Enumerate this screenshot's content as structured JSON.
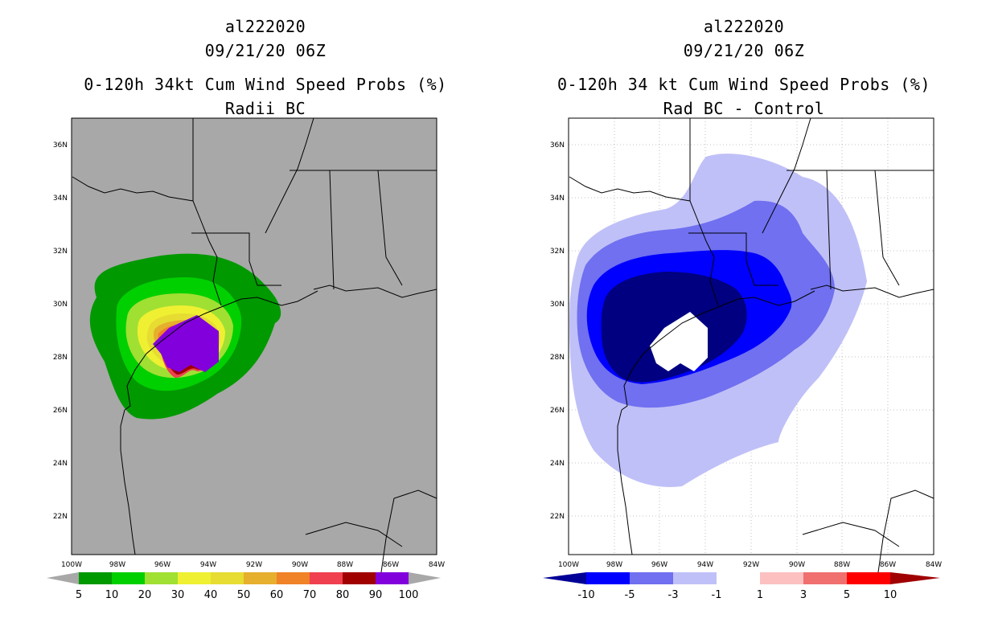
{
  "colors": {
    "land_gray": "#a8a8a8",
    "ocean_white": "#ffffff",
    "prob_scale": [
      "#009900",
      "#00d000",
      "#a0e032",
      "#eff032",
      "#e6dc32",
      "#e6af2d",
      "#f08228",
      "#f04050",
      "#a00000",
      "#8200dc"
    ],
    "diff_scale": [
      "#000096",
      "#0000ff",
      "#7070f0",
      "#c0c0f8",
      "#ffffff",
      "#fcc0c0",
      "#f07070",
      "#ff0000",
      "#a00000"
    ]
  },
  "left": {
    "storm_id": "al222020",
    "date": "09/21/20 06Z",
    "product": "0-120h 34kt Cum Wind Speed Probs (%)",
    "subtitle": "Radii BC",
    "lat_labels": [
      "36N",
      "34N",
      "32N",
      "30N",
      "28N",
      "26N",
      "24N",
      "22N"
    ],
    "lon_labels": [
      "100W",
      "98W",
      "96W",
      "94W",
      "92W",
      "90W",
      "88W",
      "86W",
      "84W"
    ],
    "colorbar_labels": [
      "5",
      "10",
      "20",
      "30",
      "40",
      "50",
      "60",
      "70",
      "80",
      "90",
      "100"
    ]
  },
  "right": {
    "storm_id": "al222020",
    "date": "09/21/20 06Z",
    "product": "0-120h 34 kt Cum Wind Speed Probs (%)",
    "subtitle": "Rad BC - Control",
    "lat_labels": [
      "36N",
      "34N",
      "32N",
      "30N",
      "28N",
      "26N",
      "24N",
      "22N"
    ],
    "lon_labels": [
      "100W",
      "98W",
      "96W",
      "94W",
      "92W",
      "90W",
      "88W",
      "86W",
      "84W"
    ],
    "colorbar_labels": [
      "-10",
      "-5",
      "-3",
      "-1",
      "1",
      "3",
      "5",
      "10"
    ]
  }
}
